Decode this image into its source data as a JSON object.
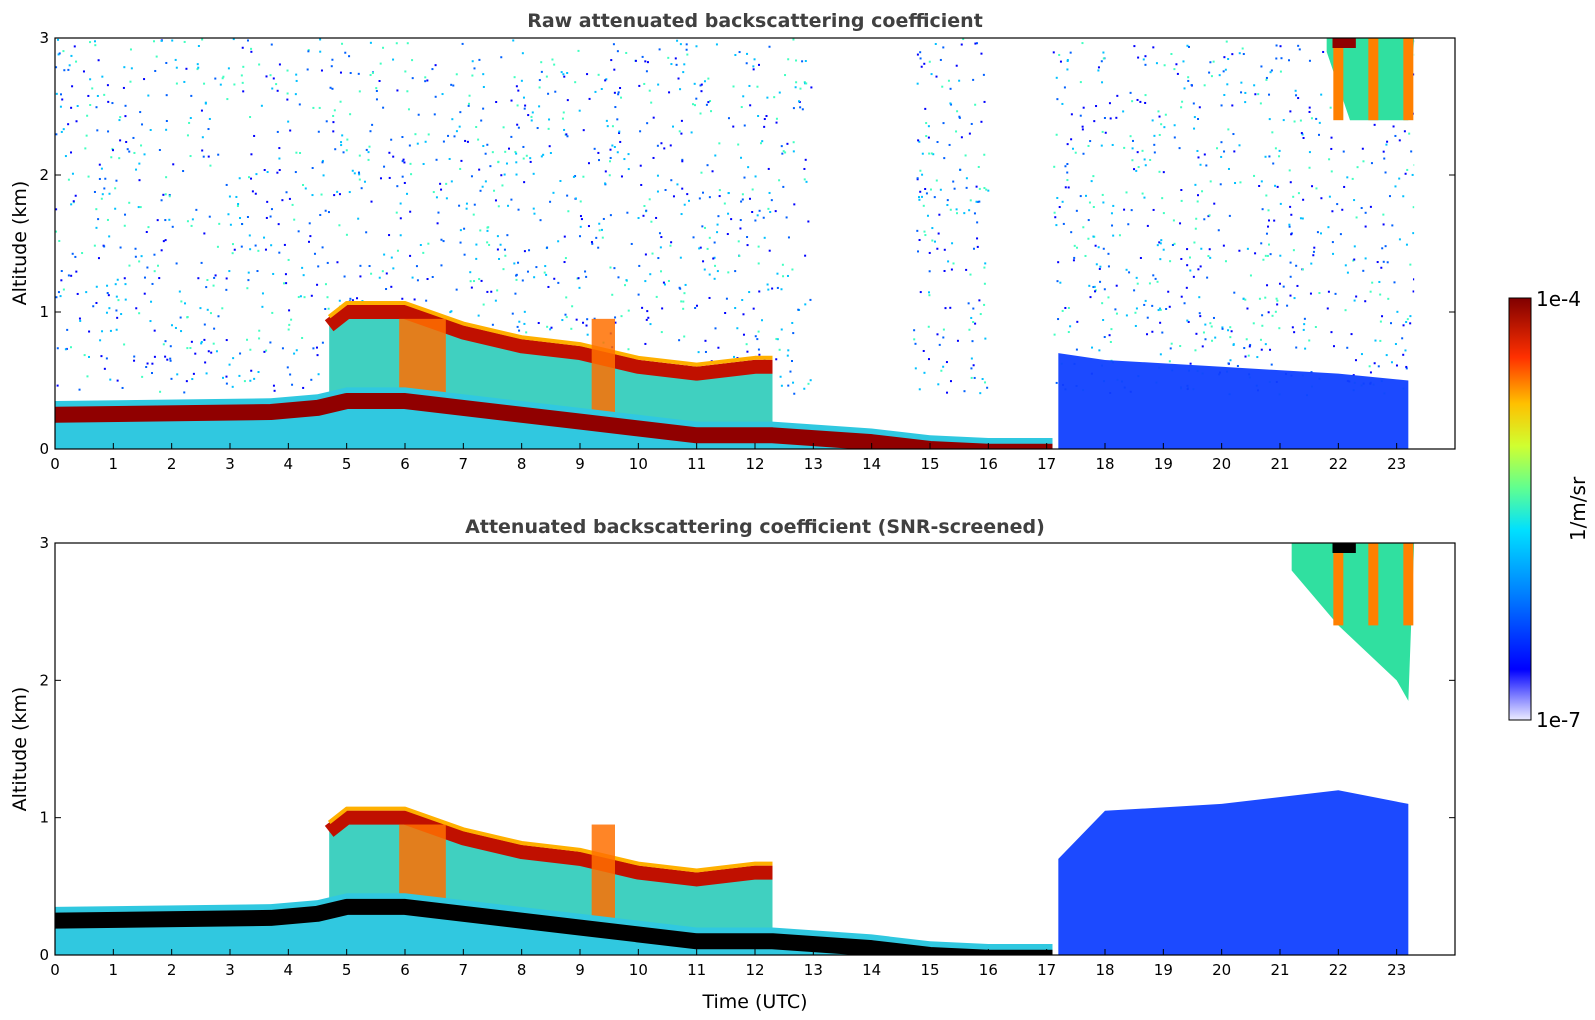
{
  "chart_data": [
    {
      "type": "heatmap",
      "title": "Raw attenuated backscattering coefficient",
      "xlabel": "",
      "ylabel": "Altitude (km)",
      "xlim": [
        0,
        24
      ],
      "ylim": [
        0,
        3
      ],
      "xticks": [
        "0",
        "1",
        "2",
        "3",
        "4",
        "5",
        "6",
        "7",
        "8",
        "9",
        "10",
        "11",
        "12",
        "13",
        "14",
        "15",
        "16",
        "17",
        "18",
        "19",
        "20",
        "21",
        "22",
        "23"
      ],
      "yticks": [
        "0",
        "1",
        "2",
        "3"
      ],
      "features": [
        {
          "name": "nocturnal layer top",
          "x": [
            0,
            3.7,
            4.5,
            5,
            6,
            7,
            9,
            11,
            12.3,
            14,
            15,
            16,
            17.1
          ],
          "y": [
            0.35,
            0.37,
            0.4,
            0.45,
            0.45,
            0.4,
            0.3,
            0.2,
            0.2,
            0.15,
            0.1,
            0.08,
            0.08
          ]
        },
        {
          "name": "residual layer top",
          "x": [
            4.7,
            5,
            6,
            7,
            8,
            9,
            10,
            11,
            12,
            12.3
          ],
          "y": [
            0.9,
            1.0,
            1.0,
            0.85,
            0.75,
            0.7,
            0.6,
            0.55,
            0.6,
            0.6
          ]
        },
        {
          "name": "daytime boundary layer top",
          "x": [
            17.2,
            18,
            20,
            22,
            23.2
          ],
          "y": [
            0.7,
            0.65,
            0.6,
            0.55,
            0.5
          ]
        },
        {
          "name": "high cloud",
          "x": [
            21.8,
            22.2,
            23.2
          ],
          "y": [
            2.9,
            2.4,
            2.4
          ]
        }
      ],
      "grid": false
    },
    {
      "type": "heatmap",
      "title": "Attenuated backscattering coefficient (SNR-screened)",
      "xlabel": "Time (UTC)",
      "ylabel": "Altitude (km)",
      "xlim": [
        0,
        24
      ],
      "ylim": [
        0,
        3
      ],
      "xticks": [
        "0",
        "1",
        "2",
        "3",
        "4",
        "5",
        "6",
        "7",
        "8",
        "9",
        "10",
        "11",
        "12",
        "13",
        "14",
        "15",
        "16",
        "17",
        "18",
        "19",
        "20",
        "21",
        "22",
        "23"
      ],
      "yticks": [
        "0",
        "1",
        "2",
        "3"
      ],
      "features": [
        {
          "name": "nocturnal layer top",
          "x": [
            0,
            3.7,
            4.5,
            5,
            6,
            7,
            9,
            11,
            12.3,
            14,
            15,
            16,
            17.1
          ],
          "y": [
            0.35,
            0.37,
            0.4,
            0.45,
            0.45,
            0.4,
            0.3,
            0.2,
            0.2,
            0.15,
            0.1,
            0.08,
            0.08
          ]
        },
        {
          "name": "residual layer top",
          "x": [
            4.7,
            5,
            6,
            7,
            8,
            9,
            10,
            11,
            12,
            12.3
          ],
          "y": [
            0.9,
            1.0,
            1.0,
            0.85,
            0.75,
            0.7,
            0.6,
            0.55,
            0.6,
            0.6
          ]
        },
        {
          "name": "daytime boundary layer top",
          "x": [
            17.2,
            18,
            20,
            22,
            23.2
          ],
          "y": [
            0.7,
            1.05,
            1.1,
            1.2,
            1.1
          ]
        },
        {
          "name": "high cloud",
          "x": [
            21.2,
            22,
            23,
            23.2
          ],
          "y": [
            2.8,
            2.4,
            2.0,
            1.85
          ]
        }
      ],
      "grid": false
    }
  ],
  "colorbar": {
    "label": "1/m/sr",
    "max_label": "1e-4",
    "min_label": "1e-7",
    "scale": "log",
    "range": [
      1e-07,
      0.0001
    ],
    "colors": [
      "#e8e8ff",
      "#9090ff",
      "#0000ff",
      "#0060ff",
      "#00c0ff",
      "#40ffc0",
      "#c0ff40",
      "#ffd000",
      "#ff6000",
      "#e00000",
      "#800000"
    ]
  }
}
